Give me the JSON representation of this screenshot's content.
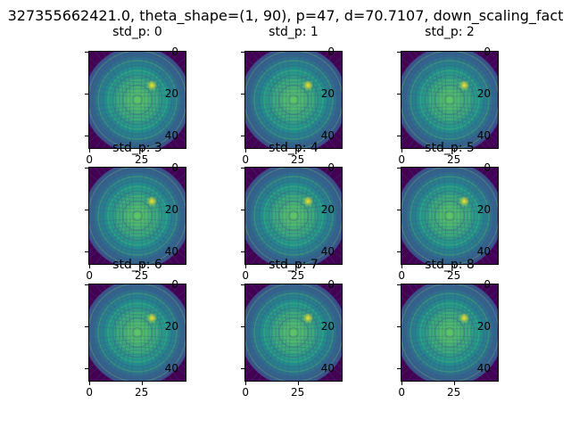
{
  "figure": {
    "suptitle": "327355662421.0, theta_shape=(1, 90), p=47, d=70.7107, down_scaling_fact"
  },
  "colormap": [
    "#440154",
    "#3b528b",
    "#21918c",
    "#5ec962",
    "#fde725"
  ],
  "chart_data": [
    {
      "type": "heatmap",
      "title": "std_p: 0",
      "xticks": [
        0,
        25
      ],
      "yticks": [
        0,
        20,
        40
      ],
      "xlim": [
        -0.5,
        46.5
      ],
      "ylim": [
        46.5,
        -0.5
      ],
      "grid_size": 47,
      "pattern": "circular speckle / moire intensity map, bright spot near (30, 16)"
    },
    {
      "type": "heatmap",
      "title": "std_p: 1",
      "xticks": [
        0,
        25
      ],
      "yticks": [
        0,
        20,
        40
      ],
      "xlim": [
        -0.5,
        46.5
      ],
      "ylim": [
        46.5,
        -0.5
      ],
      "grid_size": 47,
      "pattern": "circular speckle / moire intensity map, bright spot near (30, 16)"
    },
    {
      "type": "heatmap",
      "title": "std_p: 2",
      "xticks": [
        0,
        25
      ],
      "yticks": [
        0,
        20,
        40
      ],
      "xlim": [
        -0.5,
        46.5
      ],
      "ylim": [
        46.5,
        -0.5
      ],
      "grid_size": 47,
      "pattern": "circular speckle / moire intensity map, bright spot near (30, 16)"
    },
    {
      "type": "heatmap",
      "title": "std_p: 3",
      "xticks": [
        0,
        25
      ],
      "yticks": [
        0,
        20,
        40
      ],
      "xlim": [
        -0.5,
        46.5
      ],
      "ylim": [
        46.5,
        -0.5
      ],
      "grid_size": 47,
      "pattern": "circular speckle / moire intensity map, bright spot near (30, 16)"
    },
    {
      "type": "heatmap",
      "title": "std_p: 4",
      "xticks": [
        0,
        25
      ],
      "yticks": [
        0,
        20,
        40
      ],
      "xlim": [
        -0.5,
        46.5
      ],
      "ylim": [
        46.5,
        -0.5
      ],
      "grid_size": 47,
      "pattern": "circular speckle / moire intensity map, bright spot near (30, 16)"
    },
    {
      "type": "heatmap",
      "title": "std_p: 5",
      "xticks": [
        0,
        25
      ],
      "yticks": [
        0,
        20,
        40
      ],
      "xlim": [
        -0.5,
        46.5
      ],
      "ylim": [
        46.5,
        -0.5
      ],
      "grid_size": 47,
      "pattern": "circular speckle / moire intensity map, bright spot near (30, 16)"
    },
    {
      "type": "heatmap",
      "title": "std_p: 6",
      "xticks": [
        0,
        25
      ],
      "yticks": [
        0,
        20,
        40
      ],
      "xlim": [
        -0.5,
        46.5
      ],
      "ylim": [
        46.5,
        -0.5
      ],
      "grid_size": 47,
      "pattern": "circular speckle / moire intensity map, bright spot near (30, 16)"
    },
    {
      "type": "heatmap",
      "title": "std_p: 7",
      "xticks": [
        0,
        25
      ],
      "yticks": [
        0,
        20,
        40
      ],
      "xlim": [
        -0.5,
        46.5
      ],
      "ylim": [
        46.5,
        -0.5
      ],
      "grid_size": 47,
      "pattern": "circular speckle / moire intensity map, bright spot near (30, 16)"
    },
    {
      "type": "heatmap",
      "title": "std_p: 8",
      "xticks": [
        0,
        25
      ],
      "yticks": [
        0,
        20,
        40
      ],
      "xlim": [
        -0.5,
        46.5
      ],
      "ylim": [
        46.5,
        -0.5
      ],
      "grid_size": 47,
      "pattern": "circular speckle / moire intensity map, bright spot near (30, 16)"
    }
  ]
}
